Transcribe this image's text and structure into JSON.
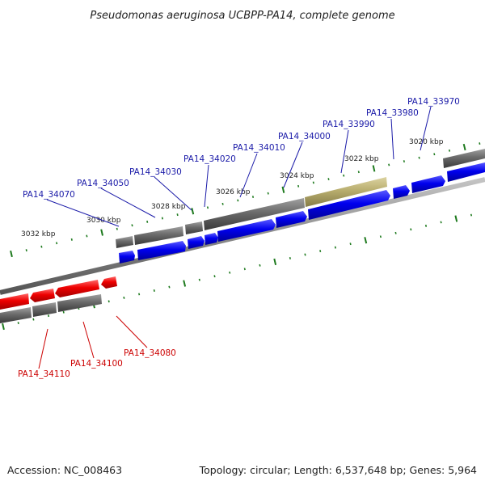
{
  "title": "Pseudomonas aeruginosa UCBPP-PA14, complete genome",
  "accession_text": "Accession: NC_008463",
  "summary_text": "Topology: circular; Length: 6,537,648 bp; Genes: 5,964",
  "colors": {
    "forward": "#0000ee",
    "reverse": "#ee0000",
    "gene_block": "#6a6a6a",
    "highlight": "#b8ad6e",
    "tick": "#1e7a1e",
    "backbone": "#8c8c8c",
    "fwd_label": "#1a1aa8",
    "rev_label": "#cc0000"
  },
  "scale": {
    "unit": "kbp",
    "ticks": [
      {
        "label": "3020 kbp"
      },
      {
        "label": "3022 kbp"
      },
      {
        "label": "3024 kbp"
      },
      {
        "label": "3026 kbp"
      },
      {
        "label": "3028 kbp"
      },
      {
        "label": "3030 kbp"
      },
      {
        "label": "3032 kbp"
      }
    ]
  },
  "forward_genes": [
    {
      "label": "PA14_33970"
    },
    {
      "label": "PA14_33980"
    },
    {
      "label": "PA14_33990"
    },
    {
      "label": "PA14_34000"
    },
    {
      "label": "PA14_34010"
    },
    {
      "label": "PA14_34020"
    },
    {
      "label": "PA14_34030"
    },
    {
      "label": "PA14_34050"
    },
    {
      "label": "PA14_34070"
    }
  ],
  "reverse_genes": [
    {
      "label": "PA14_34080"
    },
    {
      "label": "PA14_34100"
    },
    {
      "label": "PA14_34110"
    }
  ]
}
